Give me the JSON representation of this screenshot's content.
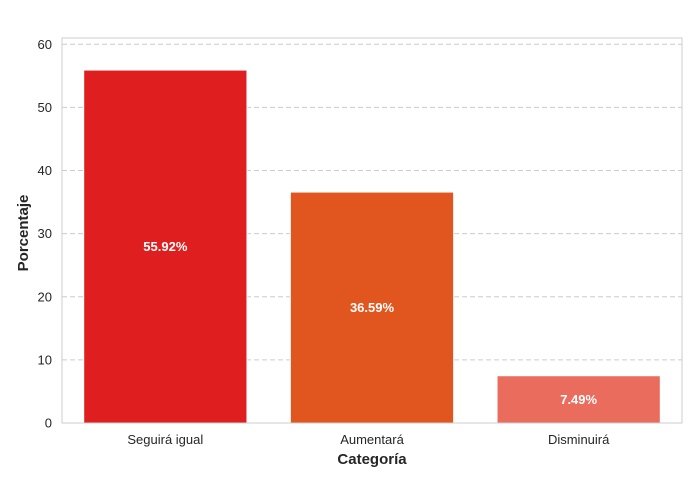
{
  "chart_data": {
    "type": "bar",
    "categories": [
      "Seguirá igual",
      "Aumentará",
      "Disminuirá"
    ],
    "values": [
      55.92,
      36.59,
      7.49
    ],
    "data_labels": [
      "55.92%",
      "36.59%",
      "7.49%"
    ],
    "colors": [
      "#df1f1f",
      "#e1561e",
      "#e96c5c"
    ],
    "title": "",
    "xlabel": "Categoría",
    "ylabel": "Porcentaje",
    "ylim": [
      0,
      61
    ],
    "yticks": [
      0,
      10,
      20,
      30,
      40,
      50,
      60
    ],
    "grid": "horizontal-dashed",
    "legend": "none"
  }
}
